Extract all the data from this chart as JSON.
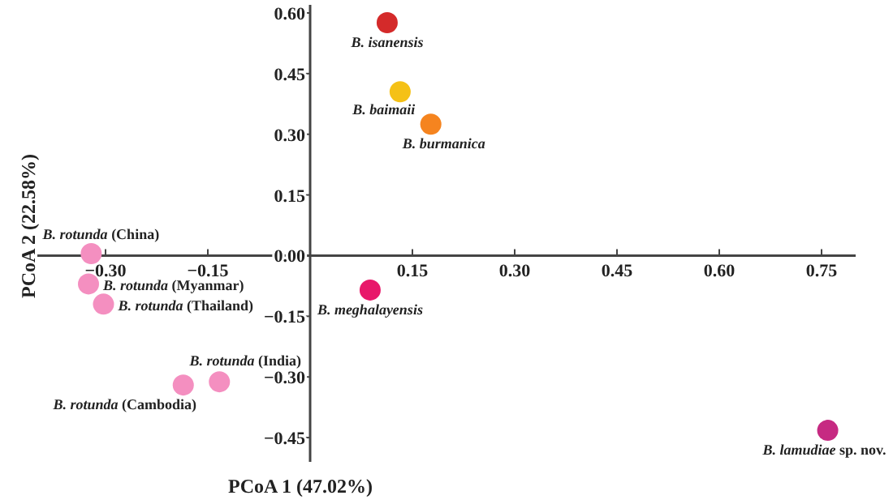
{
  "chart_data": {
    "type": "scatter",
    "xlabel": "PCoA 1 (47.02%)",
    "ylabel": "PCoA 2 (22.58%)",
    "xlim": [
      -0.4,
      0.8
    ],
    "ylim": [
      -0.51,
      0.62
    ],
    "xticks": [
      {
        "value": -0.3,
        "label": "−0.30"
      },
      {
        "value": -0.15,
        "label": "−0.15"
      },
      {
        "value": 0.15,
        "label": "0.15"
      },
      {
        "value": 0.3,
        "label": "0.30"
      },
      {
        "value": 0.45,
        "label": "0.45"
      },
      {
        "value": 0.6,
        "label": "0.60"
      },
      {
        "value": 0.75,
        "label": "0.75"
      }
    ],
    "yticks": [
      {
        "value": 0.6,
        "label": "0.60"
      },
      {
        "value": 0.45,
        "label": "0.45"
      },
      {
        "value": 0.3,
        "label": "0.30"
      },
      {
        "value": 0.15,
        "label": "0.15"
      },
      {
        "value": 0,
        "label": "0.00"
      },
      {
        "value": -0.15,
        "label": "−0.15"
      },
      {
        "value": -0.3,
        "label": "−0.30"
      },
      {
        "value": -0.45,
        "label": "−0.45"
      }
    ],
    "grid": false,
    "legend": false,
    "marker": "circle",
    "series": [
      {
        "name": "B. isanensis",
        "color": "#d42a2a",
        "x": [
          0.113
        ],
        "values": [
          0.576
        ]
      },
      {
        "name": "B. baimaii",
        "color": "#f5c116",
        "x": [
          0.132
        ],
        "values": [
          0.405
        ]
      },
      {
        "name": "B. burmanica",
        "color": "#f5841f",
        "x": [
          0.177
        ],
        "values": [
          0.325
        ]
      },
      {
        "name": "B. rotunda (China)",
        "color": "#f48fc0",
        "x": [
          -0.321
        ],
        "values": [
          0.005
        ]
      },
      {
        "name": "B. rotunda (Myanmar)",
        "color": "#f48fc0",
        "x": [
          -0.325
        ],
        "values": [
          -0.07
        ]
      },
      {
        "name": "B. rotunda (Thailand)",
        "color": "#f48fc0",
        "x": [
          -0.303
        ],
        "values": [
          -0.12
        ]
      },
      {
        "name": "B. rotunda (India)",
        "color": "#f48fc0",
        "x": [
          -0.133
        ],
        "values": [
          -0.312
        ]
      },
      {
        "name": "B. rotunda (Cambodia)",
        "color": "#f48fc0",
        "x": [
          -0.186
        ],
        "values": [
          -0.32
        ]
      },
      {
        "name": "B. meghalayensis",
        "color": "#e8186a",
        "x": [
          0.088
        ],
        "values": [
          -0.085
        ]
      },
      {
        "name": "B. lamudiae sp. nov.",
        "color": "#c62a82",
        "x": [
          0.759
        ],
        "values": [
          -0.432
        ]
      }
    ]
  }
}
